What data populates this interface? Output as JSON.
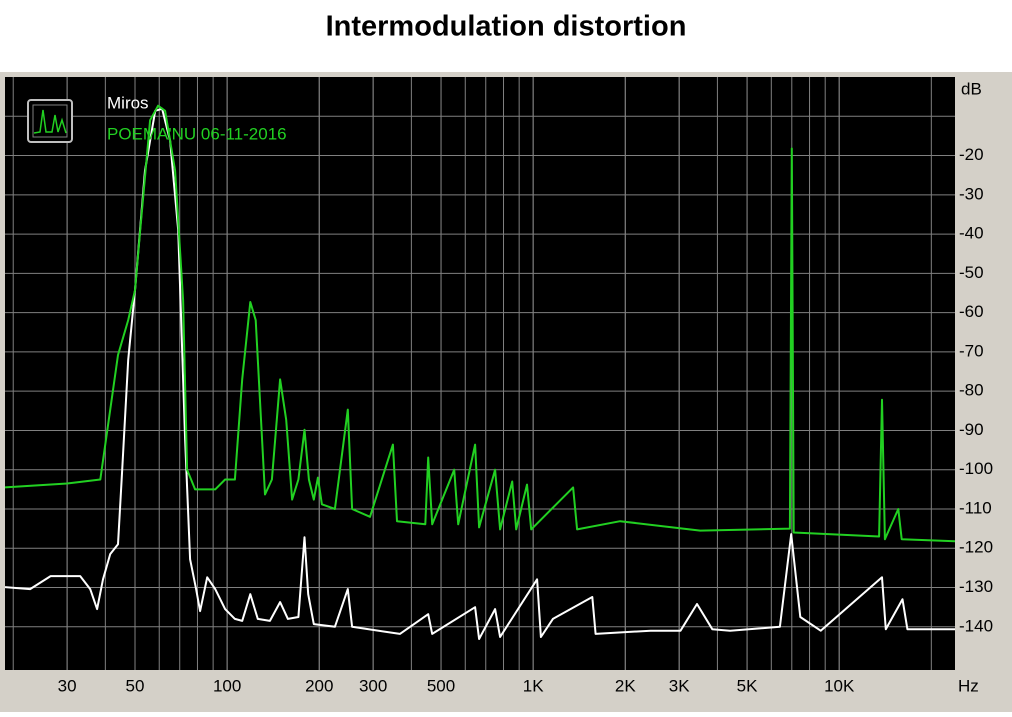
{
  "chart_data": {
    "type": "line",
    "title": "Intermodulation distortion",
    "x_label": "Hz",
    "y_label": "dB",
    "log_x": true,
    "grid": true,
    "xlim": [
      18.8,
      23900
    ],
    "ylim": [
      -151,
      0
    ],
    "xticks": [
      30,
      50,
      100,
      200,
      300,
      500,
      {
        "value": 1000,
        "label": "1K"
      },
      {
        "value": 2000,
        "label": "2K"
      },
      {
        "value": 3000,
        "label": "3K"
      },
      {
        "value": 5000,
        "label": "5K"
      },
      {
        "value": 10000,
        "label": "10K"
      }
    ],
    "yticks": [
      -20,
      -30,
      -40,
      -50,
      -60,
      -70,
      -80,
      -90,
      -100,
      -110,
      -120,
      -130,
      -140
    ],
    "series": [
      {
        "name": "Miros",
        "color": "#ffffff",
        "x": [
          18.8,
          22.7,
          26.5,
          33.1,
          35.7,
          37.6,
          39.3,
          41.5,
          44,
          45.4,
          47.5,
          50,
          53.9,
          58.2,
          61.3,
          65.1,
          69.2,
          72.9,
          75.7,
          79.2,
          81.6,
          86.1,
          91.4,
          98.5,
          106,
          112,
          119,
          126,
          138,
          149,
          158,
          171,
          179,
          184,
          192,
          225,
          248,
          256,
          367,
          454,
          468,
          646,
          666,
          751,
          780,
          1030,
          1060,
          1160,
          1560,
          1600,
          2420,
          3030,
          3430,
          3850,
          4400,
          6400,
          6970,
          7460,
          8700,
          13800,
          14200,
          16100,
          16700,
          23900
        ],
        "values": [
          -129.9,
          -130.4,
          -127.1,
          -127.1,
          -130.4,
          -135.5,
          -127.9,
          -121.5,
          -119,
          -100,
          -72,
          -54.3,
          -23.8,
          -8.6,
          -8.1,
          -16.2,
          -39,
          -92.3,
          -122.8,
          -130.4,
          -136,
          -127.4,
          -130.4,
          -135.5,
          -138,
          -138.5,
          -131.7,
          -138,
          -138.5,
          -133.7,
          -138,
          -137.5,
          -117.2,
          -131.7,
          -139.3,
          -140,
          -130.4,
          -140,
          -141.8,
          -136.8,
          -141.8,
          -135,
          -143.1,
          -135.5,
          -142.6,
          -127.9,
          -142.6,
          -138,
          -132.4,
          -141.8,
          -141,
          -141,
          -134.2,
          -140.6,
          -141,
          -140,
          -116.4,
          -137.5,
          -141,
          -127.4,
          -140.6,
          -133,
          -140.6,
          -140.6
        ]
      },
      {
        "name": "POEMA'NU 06-11-2016",
        "color": "#22d022",
        "x": [
          18.8,
          30,
          38.5,
          44,
          47.5,
          50,
          52,
          56,
          59.5,
          62.7,
          67.6,
          71.8,
          74,
          78.6,
          91.4,
          98.5,
          106,
          112,
          119,
          124,
          133,
          140,
          149,
          156,
          163,
          171,
          179,
          185,
          192,
          198,
          204,
          225,
          248,
          256,
          293,
          348,
          359,
          444,
          454,
          468,
          552,
          569,
          646,
          666,
          751,
          780,
          854,
          880,
          955,
          985,
          1350,
          1392,
          1924,
          3513,
          6900,
          7000,
          7100,
          13500,
          13800,
          14100,
          15600,
          16000,
          23900
        ],
        "values": [
          -104.5,
          -103.5,
          -102.5,
          -70.8,
          -61.9,
          -54.3,
          -39,
          -11,
          -7.3,
          -8.6,
          -23.8,
          -56.8,
          -100,
          -105,
          -105,
          -102.5,
          -102.5,
          -77,
          -57.3,
          -61.9,
          -106.3,
          -102.5,
          -77,
          -87.3,
          -107.6,
          -102.5,
          -89.8,
          -102.5,
          -107.6,
          -102,
          -108.8,
          -110,
          -84.7,
          -110,
          -112,
          -93.6,
          -113.1,
          -113.9,
          -96.9,
          -113.9,
          -100,
          -113.9,
          -93.6,
          -114.7,
          -100,
          -115.2,
          -103,
          -115.2,
          -103.8,
          -115.2,
          -104.5,
          -115.2,
          -113.1,
          -115.5,
          -115,
          -18.2,
          -116,
          -117,
          -82.2,
          -117.7,
          -110,
          -117.7,
          -118.2
        ]
      }
    ]
  }
}
